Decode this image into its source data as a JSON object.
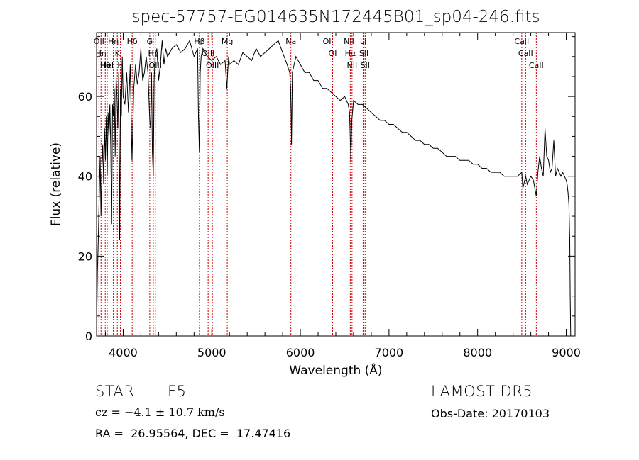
{
  "chart_data": {
    "type": "line",
    "title": "spec-57757-EG014635N172445B01_sp04-246.fits",
    "xlabel": "Wavelength (Å)",
    "ylabel": "Flux (relative)",
    "xlim": [
      3700,
      9100
    ],
    "ylim": [
      0,
      76
    ],
    "x_ticks": [
      4000,
      5000,
      6000,
      7000,
      8000,
      9000
    ],
    "x_tick_labels": [
      "4000",
      "5000",
      "6000",
      "7000",
      "8000",
      "9000"
    ],
    "y_ticks": [
      0,
      20,
      40,
      60
    ],
    "y_tick_labels": [
      "0",
      "20",
      "40",
      "60"
    ],
    "grid": false,
    "series": [
      {
        "color": "#000000",
        "x": [
          3700,
          3710,
          3720,
          3730,
          3740,
          3750,
          3760,
          3770,
          3780,
          3790,
          3800,
          3810,
          3820,
          3830,
          3840,
          3850,
          3860,
          3870,
          3880,
          3890,
          3900,
          3910,
          3920,
          3930,
          3940,
          3950,
          3960,
          3970,
          3980,
          3990,
          4000,
          4020,
          4040,
          4060,
          4080,
          4100,
          4120,
          4140,
          4160,
          4180,
          4200,
          4220,
          4240,
          4260,
          4280,
          4300,
          4310,
          4320,
          4330,
          4340,
          4350,
          4360,
          4380,
          4400,
          4420,
          4440,
          4460,
          4480,
          4500,
          4550,
          4600,
          4650,
          4700,
          4750,
          4800,
          4840,
          4850,
          4860,
          4870,
          4880,
          4900,
          4950,
          5000,
          5050,
          5100,
          5150,
          5170,
          5180,
          5190,
          5200,
          5250,
          5300,
          5350,
          5400,
          5450,
          5500,
          5550,
          5600,
          5650,
          5700,
          5750,
          5800,
          5850,
          5880,
          5890,
          5895,
          5900,
          5910,
          5950,
          6000,
          6050,
          6100,
          6150,
          6200,
          6250,
          6300,
          6350,
          6400,
          6450,
          6500,
          6540,
          6555,
          6563,
          6570,
          6580,
          6600,
          6650,
          6700,
          6750,
          6800,
          6850,
          6900,
          6950,
          7000,
          7050,
          7100,
          7150,
          7200,
          7250,
          7300,
          7350,
          7400,
          7450,
          7500,
          7550,
          7600,
          7650,
          7700,
          7750,
          7800,
          7850,
          7900,
          7950,
          8000,
          8050,
          8100,
          8150,
          8200,
          8250,
          8300,
          8350,
          8400,
          8450,
          8498,
          8510,
          8542,
          8560,
          8600,
          8630,
          8662,
          8680,
          8700,
          8720,
          8740,
          8760,
          8780,
          8800,
          8820,
          8840,
          8860,
          8880,
          8900,
          8920,
          8940,
          8960,
          8980,
          9000,
          9010,
          9020,
          9030,
          9040,
          9045,
          9050
        ],
        "values": [
          0.5,
          16,
          25,
          35,
          45,
          30,
          42,
          48,
          38,
          52,
          44,
          55,
          40,
          56,
          50,
          58,
          47,
          28,
          58,
          55,
          62,
          45,
          65,
          60,
          52,
          66,
          24,
          62,
          55,
          70,
          60,
          58,
          66,
          56,
          68,
          44,
          62,
          68,
          63,
          66,
          72,
          64,
          66,
          70,
          66,
          54,
          52,
          66,
          46,
          40,
          64,
          70,
          72,
          64,
          68,
          74,
          68,
          72,
          70,
          72,
          73,
          71,
          72,
          74,
          70,
          72,
          55,
          46,
          66,
          70,
          72,
          70,
          69,
          70,
          68,
          69,
          62,
          66,
          70,
          68,
          69,
          68,
          71,
          70,
          69,
          72,
          70,
          71,
          72,
          73,
          74,
          71,
          68,
          66,
          62,
          56,
          48,
          66,
          70,
          68,
          66,
          66,
          64,
          64,
          62,
          62,
          61,
          60,
          59,
          60,
          58,
          56,
          50,
          44,
          54,
          59,
          58,
          58,
          57,
          56,
          55,
          54,
          54,
          53,
          53,
          52,
          51,
          51,
          50,
          49,
          49,
          48,
          48,
          47,
          47,
          46,
          45,
          45,
          45,
          44,
          44,
          44,
          43,
          43,
          42,
          42,
          41,
          41,
          41,
          40,
          40,
          40,
          40,
          41,
          37,
          40,
          38,
          40,
          39,
          35,
          41,
          45,
          42,
          40,
          52,
          45,
          44,
          41,
          42,
          49,
          40,
          42,
          41,
          40,
          41,
          40,
          39,
          38,
          36,
          33,
          24,
          10,
          0
        ]
      }
    ],
    "line_markers": [
      {
        "x": 3727,
        "label": "OII"
      },
      {
        "x": 3750,
        "label": "Hη"
      },
      {
        "x": 3798,
        "label": "Hθ"
      },
      {
        "x": 3820,
        "label": "HeI"
      },
      {
        "x": 3889,
        "label": "Hη"
      },
      {
        "x": 3934,
        "label": "K"
      },
      {
        "x": 3969,
        "label": "H"
      },
      {
        "x": 4102,
        "label": "Hδ"
      },
      {
        "x": 4300,
        "label": "G"
      },
      {
        "x": 4340,
        "label": "Hγ"
      },
      {
        "x": 4363,
        "label": "OIII"
      },
      {
        "x": 4861,
        "label": "Hβ"
      },
      {
        "x": 4959,
        "label": "OIII"
      },
      {
        "x": 5007,
        "label": "OIII"
      },
      {
        "x": 5175,
        "label": "Mg"
      },
      {
        "x": 5893,
        "label": "Na"
      },
      {
        "x": 6300,
        "label": "OI"
      },
      {
        "x": 6364,
        "label": "OI"
      },
      {
        "x": 6548,
        "label": "NII"
      },
      {
        "x": 6563,
        "label": "Hα"
      },
      {
        "x": 6583,
        "label": "NII"
      },
      {
        "x": 6708,
        "label": "Li"
      },
      {
        "x": 6717,
        "label": "SII"
      },
      {
        "x": 6731,
        "label": "SII"
      },
      {
        "x": 8498,
        "label": "CaII"
      },
      {
        "x": 8542,
        "label": "CaII"
      },
      {
        "x": 8662,
        "label": "CaII"
      }
    ]
  },
  "info": {
    "object_class": "STAR",
    "subclass": "F5",
    "cz": "cz = −4.1 ± 10.7 km/s",
    "coords": "RA =  26.95564, DEC =  17.47416",
    "survey": "LAMOST DR5",
    "obs_date": "Obs-Date: 20170103"
  }
}
